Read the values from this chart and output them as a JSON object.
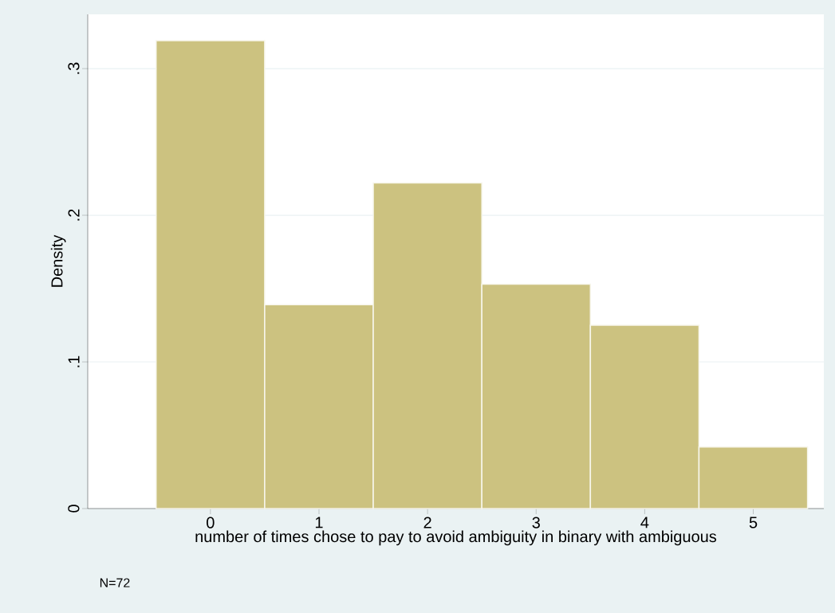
{
  "chart_data": {
    "type": "histogram",
    "xlabel": "number of times chose to pay to avoid ambiguity in binary with ambiguous",
    "ylabel": "Density",
    "bins": [
      -0.5,
      0.5,
      1.5,
      2.5,
      3.5,
      4.5,
      5.5
    ],
    "values": [
      0.319,
      0.139,
      0.222,
      0.153,
      0.125,
      0.042
    ],
    "color": "#ccc280",
    "xlim": [
      -1.13,
      5.65
    ],
    "ylim": [
      0,
      0.337
    ],
    "xticks": [
      0,
      1,
      2,
      3,
      4,
      5
    ],
    "yticks": [
      {
        "value": 0,
        "label": "0"
      },
      {
        "value": 0.1,
        "label": ".1"
      },
      {
        "value": 0.2,
        "label": ".2"
      },
      {
        "value": 0.3,
        "label": ".3"
      }
    ],
    "grid": "y",
    "annotations": [
      "N=72"
    ]
  }
}
